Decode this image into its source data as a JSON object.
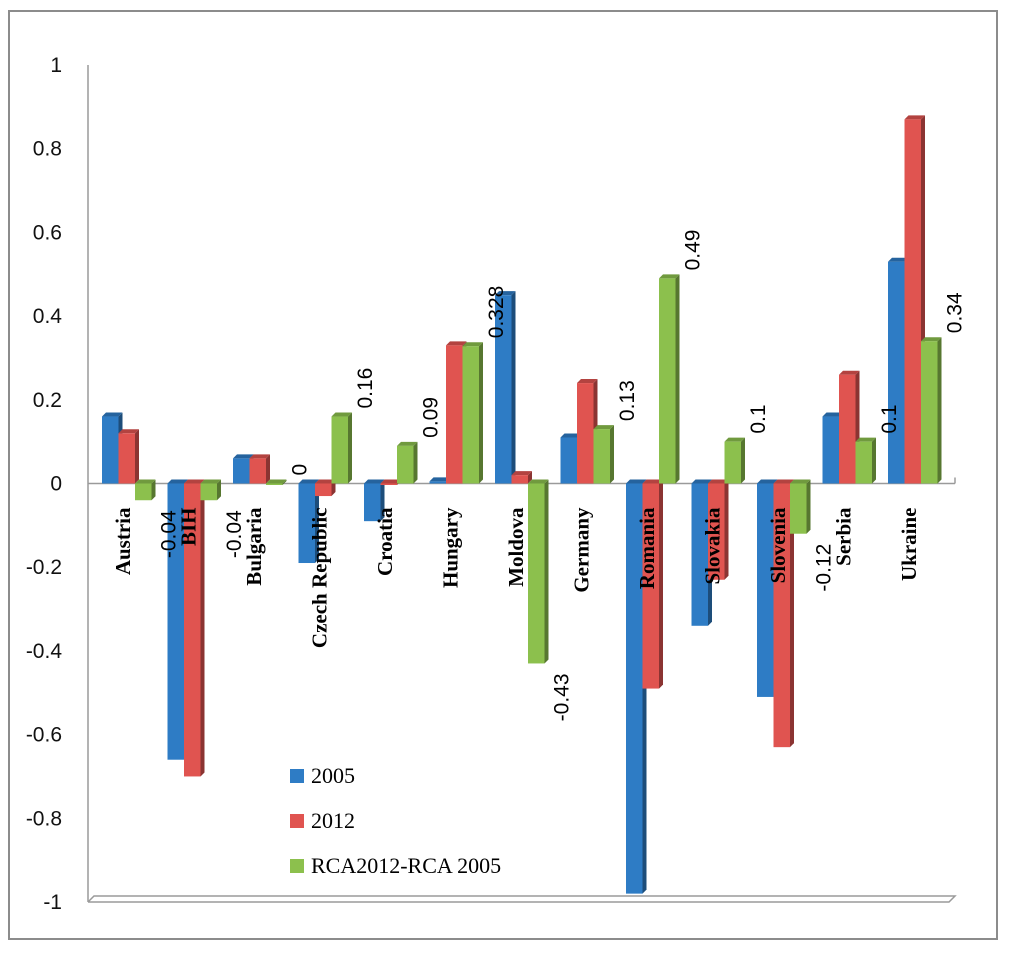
{
  "chart_data": {
    "type": "bar",
    "title": "",
    "xlabel": "",
    "ylabel": "",
    "ylim": [
      -1,
      1
    ],
    "yticks": [
      "1",
      "0.8",
      "0.6",
      "0.4",
      "0.2",
      "0",
      "-0.2",
      "-0.4",
      "-0.6",
      "-0.8",
      "-1"
    ],
    "grid": false,
    "legend_position": "bottom-left",
    "categories": [
      "Austria",
      "BIH",
      "Bulgaria",
      "Czech Republic",
      "Croatia",
      "Hungary",
      "Moldova",
      "Germany",
      "Romania",
      "Slovakia",
      "Slovenia",
      "Serbia",
      "Ukraine"
    ],
    "series": [
      {
        "name": "2005",
        "color": "#2e7cc5",
        "values": [
          0.16,
          -0.66,
          0.06,
          -0.19,
          -0.09,
          0.005,
          0.45,
          0.11,
          -0.98,
          -0.34,
          -0.51,
          0.16,
          0.53
        ]
      },
      {
        "name": "2012",
        "color": "#e05450",
        "values": [
          0.12,
          -0.7,
          0.06,
          -0.03,
          0.0,
          0.33,
          0.02,
          0.24,
          -0.49,
          -0.23,
          -0.63,
          0.26,
          0.87
        ]
      },
      {
        "name": "RCA2012-RCA 2005",
        "color": "#8cc04d",
        "values": [
          -0.04,
          -0.04,
          0.0,
          0.16,
          0.09,
          0.328,
          -0.43,
          0.13,
          0.49,
          0.1,
          -0.12,
          0.1,
          0.34
        ]
      }
    ],
    "data_labels": [
      "-0.04",
      "-0.04",
      "0",
      "0.16",
      "0.09",
      "0.328",
      "-0.43",
      "0.13",
      "0.49",
      "0.1",
      "-0.12",
      "0.1",
      "0.34"
    ]
  }
}
